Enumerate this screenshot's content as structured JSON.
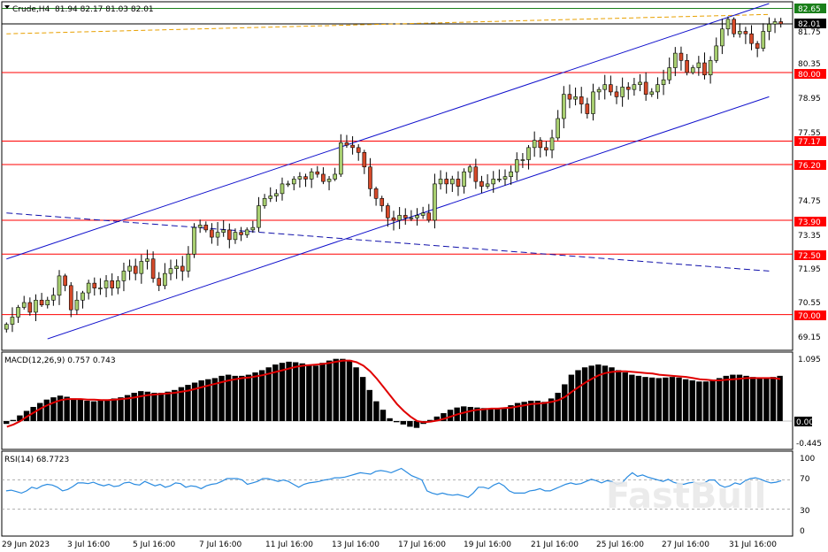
{
  "header": {
    "symbol": "Crude,H4",
    "ohlc": "81.94 82.17 81.03 82.01",
    "dropdown_icon": "triangle-down-icon"
  },
  "price_axis": {
    "ticks": [
      "81.75",
      "80.35",
      "78.95",
      "77.55",
      "74.75",
      "73.35",
      "71.95",
      "70.55",
      "69.15"
    ],
    "price_tags": [
      {
        "label": "82.65",
        "color": "#1a7f1a"
      },
      {
        "label": "82.01",
        "color": "#000000"
      },
      {
        "label": "80.00",
        "color": "#ff0000"
      },
      {
        "label": "77.17",
        "color": "#ff0000"
      },
      {
        "label": "76.20",
        "color": "#ff0000"
      },
      {
        "label": "73.90",
        "color": "#ff0000"
      },
      {
        "label": "72.50",
        "color": "#ff0000"
      },
      {
        "label": "70.00",
        "color": "#ff0000"
      }
    ]
  },
  "macd": {
    "label": "MACD(12,26,9) 0.757 0.743",
    "ticks": [
      "1.095",
      "0.00",
      "-0.445"
    ],
    "histogram": [
      -0.05,
      0.02,
      0.1,
      0.18,
      0.25,
      0.32,
      0.38,
      0.42,
      0.45,
      0.43,
      0.4,
      0.38,
      0.36,
      0.35,
      0.36,
      0.38,
      0.4,
      0.42,
      0.46,
      0.5,
      0.53,
      0.52,
      0.5,
      0.5,
      0.52,
      0.55,
      0.6,
      0.64,
      0.68,
      0.72,
      0.74,
      0.76,
      0.8,
      0.82,
      0.8,
      0.8,
      0.82,
      0.86,
      0.9,
      0.95,
      1.0,
      1.03,
      1.05,
      1.04,
      1.02,
      1.0,
      0.98,
      1.03,
      1.07,
      1.1,
      1.1,
      1.08,
      0.95,
      0.78,
      0.55,
      0.35,
      0.2,
      0.05,
      -0.02,
      -0.06,
      -0.1,
      -0.12,
      -0.05,
      0.02,
      0.08,
      0.14,
      0.2,
      0.24,
      0.26,
      0.25,
      0.24,
      0.23,
      0.22,
      0.22,
      0.24,
      0.28,
      0.32,
      0.34,
      0.36,
      0.36,
      0.34,
      0.4,
      0.5,
      0.65,
      0.82,
      0.9,
      0.95,
      0.98,
      1.0,
      0.98,
      0.95,
      0.9,
      0.86,
      0.82,
      0.8,
      0.78,
      0.77,
      0.76,
      0.77,
      0.78,
      0.77,
      0.74,
      0.72,
      0.7,
      0.7,
      0.72,
      0.76,
      0.8,
      0.82,
      0.82,
      0.8,
      0.78,
      0.76,
      0.76,
      0.78,
      0.8
    ],
    "signal": [
      -0.1,
      -0.06,
      0.0,
      0.08,
      0.15,
      0.22,
      0.28,
      0.33,
      0.37,
      0.39,
      0.39,
      0.39,
      0.38,
      0.38,
      0.37,
      0.37,
      0.38,
      0.39,
      0.4,
      0.42,
      0.44,
      0.46,
      0.47,
      0.48,
      0.49,
      0.5,
      0.52,
      0.54,
      0.57,
      0.6,
      0.63,
      0.66,
      0.69,
      0.72,
      0.74,
      0.76,
      0.77,
      0.79,
      0.81,
      0.84,
      0.87,
      0.9,
      0.93,
      0.96,
      0.98,
      0.99,
      1.0,
      1.01,
      1.03,
      1.05,
      1.07,
      1.07,
      1.04,
      0.98,
      0.88,
      0.75,
      0.6,
      0.45,
      0.3,
      0.18,
      0.08,
      0.0,
      -0.02,
      -0.01,
      0.01,
      0.04,
      0.08,
      0.12,
      0.15,
      0.18,
      0.2,
      0.21,
      0.22,
      0.22,
      0.23,
      0.24,
      0.26,
      0.28,
      0.3,
      0.31,
      0.32,
      0.34,
      0.37,
      0.43,
      0.52,
      0.6,
      0.68,
      0.75,
      0.81,
      0.85,
      0.87,
      0.88,
      0.88,
      0.87,
      0.86,
      0.85,
      0.84,
      0.82,
      0.81,
      0.8,
      0.79,
      0.78,
      0.76,
      0.74,
      0.73,
      0.72,
      0.72,
      0.73,
      0.74,
      0.75,
      0.76,
      0.76,
      0.76,
      0.76,
      0.76,
      0.743
    ]
  },
  "rsi": {
    "label": "RSI(14) 68.7723",
    "ticks": [
      "100",
      "70",
      "30",
      "0"
    ],
    "values": [
      55,
      56,
      54,
      52,
      55,
      60,
      58,
      62,
      64,
      63,
      60,
      55,
      57,
      61,
      66,
      66,
      65,
      67,
      64,
      62,
      64,
      61,
      62,
      66,
      67,
      64,
      63,
      68,
      65,
      62,
      64,
      60,
      62,
      66,
      65,
      60,
      62,
      61,
      58,
      62,
      64,
      65,
      68,
      72,
      72,
      72,
      70,
      64,
      66,
      68,
      72,
      72,
      70,
      68,
      70,
      68,
      64,
      60,
      64,
      66,
      67,
      68,
      70,
      71,
      73,
      73,
      74,
      76,
      78,
      80,
      79,
      78,
      82,
      83,
      82,
      80,
      83,
      86,
      81,
      76,
      73,
      70,
      55,
      52,
      50,
      52,
      50,
      49,
      50,
      48,
      46,
      52,
      60,
      60,
      58,
      63,
      66,
      62,
      55,
      52,
      52,
      52,
      55,
      56,
      58,
      55,
      55,
      58,
      61,
      64,
      66,
      64,
      65,
      68,
      71,
      69,
      66,
      69,
      68,
      64,
      66,
      74,
      80,
      75,
      77,
      74,
      72,
      70,
      68,
      71,
      67,
      65,
      64,
      66,
      67,
      64,
      66,
      70,
      70,
      63,
      60,
      62,
      66,
      64,
      69,
      72,
      73,
      71,
      68,
      66,
      67,
      69
    ],
    "zones": [
      70,
      30
    ]
  },
  "watermark": "FastBull",
  "time_axis": {
    "labels": [
      "29 Jun 2023",
      "3 Jul 16:00",
      "5 Jul 16:00",
      "7 Jul 16:00",
      "11 Jul 16:00",
      "13 Jul 16:00",
      "17 Jul 16:00",
      "19 Jul 16:00",
      "21 Jul 16:00",
      "25 Jul 16:00",
      "27 Jul 16:00",
      "31 Jul 16:00"
    ]
  },
  "chart_data": {
    "type": "candlestick",
    "symbol": "Crude",
    "timeframe": "H4",
    "ylim": [
      68.6,
      82.85
    ],
    "horizontal_levels": [
      {
        "price": 82.65,
        "color": "#1a7f1a"
      },
      {
        "price": 82.01,
        "color": "#000000"
      },
      {
        "price": 80.0,
        "color": "#ff0000"
      },
      {
        "price": 77.17,
        "color": "#ff0000"
      },
      {
        "price": 76.2,
        "color": "#ff0000"
      },
      {
        "price": 73.9,
        "color": "#ff0000"
      },
      {
        "price": 72.5,
        "color": "#ff0000"
      },
      {
        "price": 70.0,
        "color": "#ff0000"
      }
    ],
    "closes": [
      69.6,
      69.9,
      70.3,
      70.5,
      70.1,
      70.6,
      70.4,
      70.6,
      70.8,
      71.6,
      71.2,
      70.2,
      70.6,
      70.9,
      71.3,
      71.1,
      71.1,
      71.4,
      71.1,
      71.4,
      71.8,
      72.0,
      71.7,
      72.2,
      72.3,
      71.5,
      71.2,
      71.7,
      71.9,
      72.0,
      71.8,
      72.5,
      73.6,
      73.7,
      73.5,
      73.2,
      73.4,
      73.5,
      73.1,
      73.4,
      73.3,
      73.5,
      73.6,
      74.5,
      74.8,
      74.9,
      75.0,
      75.4,
      75.4,
      75.6,
      75.7,
      75.6,
      75.9,
      75.8,
      75.5,
      75.6,
      75.8,
      77.1,
      77.0,
      76.9,
      76.7,
      76.1,
      75.2,
      74.8,
      74.5,
      74.0,
      73.9,
      74.1,
      74.0,
      74.0,
      74.1,
      74.2,
      73.9,
      75.4,
      75.6,
      75.4,
      75.6,
      75.3,
      75.9,
      76.1,
      75.5,
      75.3,
      75.4,
      75.6,
      75.6,
      75.7,
      75.9,
      76.4,
      76.4,
      76.9,
      77.2,
      76.9,
      76.8,
      77.3,
      78.1,
      79.1,
      78.9,
      79.0,
      78.7,
      78.3,
      79.2,
      79.3,
      79.5,
      79.2,
      79.0,
      79.4,
      79.3,
      79.5,
      79.6,
      79.1,
      79.2,
      79.5,
      79.7,
      80.2,
      80.8,
      80.5,
      80.0,
      80.2,
      80.4,
      79.9,
      80.5,
      81.1,
      81.8,
      82.2,
      81.6,
      81.7,
      81.6,
      81.2,
      81.0,
      81.7,
      82.0,
      82.1,
      82.01
    ],
    "channel_upper": [
      [
        0,
        72.3
      ],
      [
        130,
        82.85
      ]
    ],
    "channel_lower": [
      [
        7,
        69.0
      ],
      [
        130,
        79.0
      ]
    ],
    "descending_line": [
      [
        0,
        74.2
      ],
      [
        130,
        71.8
      ]
    ],
    "dashed_orange": [
      [
        0,
        81.6
      ],
      [
        130,
        82.4
      ]
    ]
  }
}
